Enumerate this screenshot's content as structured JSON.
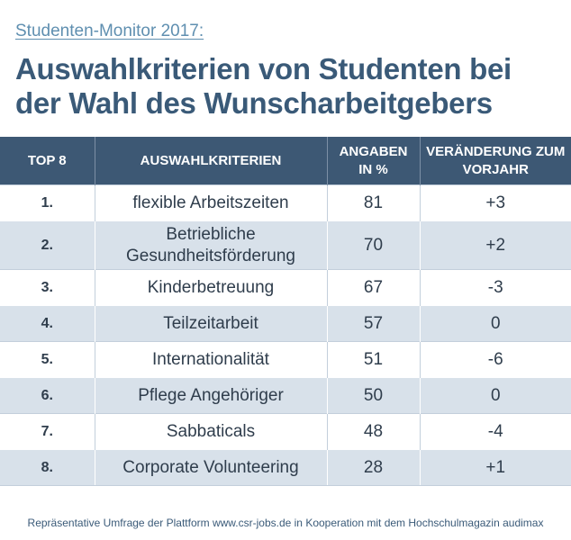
{
  "header": {
    "subtitle": "Studenten-Monitor 2017:",
    "title": "Auswahlkriterien von Studenten bei der Wahl des Wunscharbeitgebers"
  },
  "colors": {
    "header_bg": "#3d5874",
    "stripe": "#d8e1ea",
    "title": "#3a5a78",
    "subtitle": "#5f8fb0"
  },
  "chart_data": {
    "type": "table",
    "columns": [
      "TOP 8",
      "AUSWAHLKRITERIEN",
      "ANGABEN IN %",
      "VERÄNDERUNG ZUM VORJAHR"
    ],
    "rows": [
      {
        "rank": "1.",
        "criterion": "flexible Arbeitszeiten",
        "percent": "81",
        "change": "+3"
      },
      {
        "rank": "2.",
        "criterion": "Betriebliche Gesundheitsförderung",
        "percent": "70",
        "change": "+2"
      },
      {
        "rank": "3.",
        "criterion": "Kinderbetreuung",
        "percent": "67",
        "change": "-3"
      },
      {
        "rank": "4.",
        "criterion": "Teilzeitarbeit",
        "percent": "57",
        "change": "0"
      },
      {
        "rank": "5.",
        "criterion": "Internationalität",
        "percent": "51",
        "change": "-6"
      },
      {
        "rank": "6.",
        "criterion": "Pflege Angehöriger",
        "percent": "50",
        "change": "0"
      },
      {
        "rank": "7.",
        "criterion": "Sabbaticals",
        "percent": "48",
        "change": "-4"
      },
      {
        "rank": "8.",
        "criterion": "Corporate Volunteering",
        "percent": "28",
        "change": "+1"
      }
    ]
  },
  "footnote": "Repräsentative Umfrage der Plattform www.csr-jobs.de in Kooperation mit dem Hochschulmagazin audimax"
}
